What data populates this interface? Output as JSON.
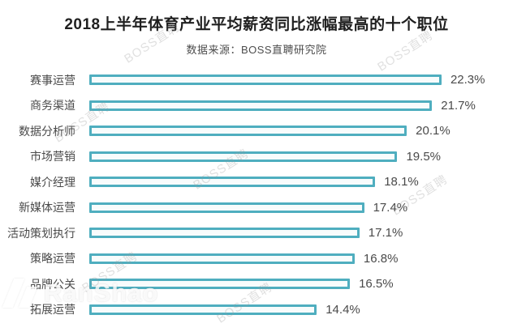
{
  "title": "2018上半年体育产业平均薪资同比涨幅最高的十个职位",
  "source": "数据来源：BOSS直聘研究院",
  "chart_data": {
    "type": "bar",
    "orientation": "horizontal",
    "title": "2018上半年体育产业平均薪资同比涨幅最高的十个职位",
    "subtitle": "数据来源：BOSS直聘研究院",
    "categories": [
      "赛事运营",
      "商务渠道",
      "数据分析师",
      "市场营销",
      "媒介经理",
      "新媒体运营",
      "活动策划执行",
      "策略运营",
      "品牌公关",
      "拓展运营"
    ],
    "values": [
      22.3,
      21.7,
      20.1,
      19.5,
      18.1,
      17.4,
      17.1,
      16.8,
      16.5,
      14.4
    ],
    "value_suffix": "%",
    "xlabel": "",
    "ylabel": "",
    "xlim": [
      0,
      23
    ],
    "grid": false,
    "legend": "none",
    "bar_style": "outlined",
    "bar_color": "#4FAEBF"
  },
  "watermarks": {
    "brand": "BOSS直聘",
    "photo_site": "RanShao"
  },
  "colors": {
    "bar_border": "#4FAEBF",
    "bar_fill": "#f8fcfc",
    "title_text": "#1f1f1f",
    "body_text": "#4a4a4a",
    "watermark_text": "#9b9b9b"
  }
}
